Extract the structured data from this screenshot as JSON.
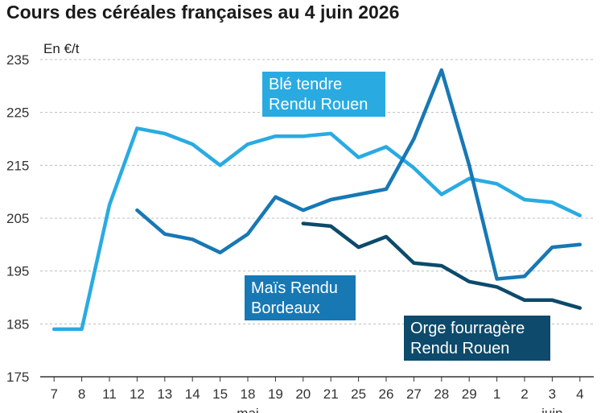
{
  "title": "Cours des céréales françaises au 4 juin 2026",
  "chart_data": {
    "type": "line",
    "title": "Cours des céréales françaises au 4 juin 2026",
    "unit_label": "En €/t",
    "ylim": [
      175,
      235
    ],
    "yticks": [
      175,
      185,
      195,
      205,
      215,
      225,
      235
    ],
    "grid": "horizontal-dashed",
    "categories": [
      "7",
      "8",
      "11",
      "12",
      "13",
      "14",
      "15",
      "18",
      "19",
      "20",
      "21",
      "25",
      "26",
      "27",
      "28",
      "29",
      "1",
      "2",
      "3",
      "4"
    ],
    "period_labels": [
      {
        "text": "mai",
        "at_category": 7
      },
      {
        "text": "juin",
        "at_category": 18
      }
    ],
    "series": [
      {
        "name": "Blé tendre Rendu Rouen",
        "label_lines": [
          "Blé tendre",
          "Rendu Rouen"
        ],
        "color": "#29abe2",
        "label_bg": "#29abe2",
        "values": [
          184,
          184,
          207.5,
          222,
          221,
          219,
          215,
          219,
          220.5,
          220.5,
          221,
          216.5,
          218.5,
          214.5,
          209.5,
          212.5,
          211.5,
          208.5,
          208,
          205.5
        ]
      },
      {
        "name": "Maïs Rendu Bordeaux",
        "label_lines": [
          "Maïs Rendu",
          "Bordeaux"
        ],
        "color": "#1778b4",
        "label_bg": "#1778b4",
        "values": [
          null,
          null,
          null,
          206.5,
          202,
          201,
          198.5,
          202,
          209,
          206.5,
          208.5,
          209.5,
          210.5,
          220,
          233,
          215,
          193.5,
          194,
          199.5,
          200
        ]
      },
      {
        "name": "Orge fourragère Rendu Rouen",
        "label_lines": [
          "Orge fourragère",
          "Rendu Rouen"
        ],
        "color": "#0d4a6b",
        "label_bg": "#0d4a6b",
        "values": [
          null,
          null,
          null,
          null,
          null,
          null,
          null,
          null,
          null,
          204,
          203.5,
          199.5,
          201.5,
          196.5,
          196,
          193,
          192,
          189.5,
          189.5,
          188
        ]
      }
    ]
  }
}
